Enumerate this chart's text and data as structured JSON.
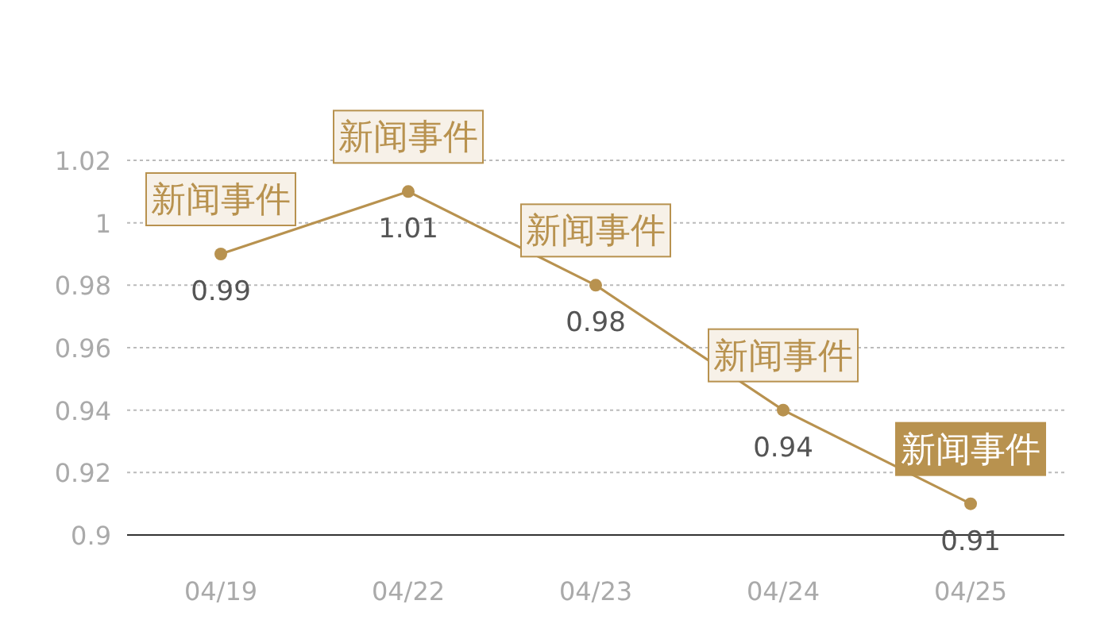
{
  "chart_data": {
    "type": "line",
    "categories": [
      "04/19",
      "04/22",
      "04/23",
      "04/24",
      "04/25"
    ],
    "series": [
      {
        "color": "#b8924f",
        "values": [
          0.99,
          1.01,
          0.98,
          0.94,
          0.91
        ]
      }
    ],
    "ylim": [
      0.9,
      1.02
    ],
    "yticks": [
      0.9,
      0.92,
      0.94,
      0.96,
      0.98,
      1,
      1.02
    ],
    "grid": "y",
    "marker": "circle",
    "line_style": "solid",
    "data_labels": true,
    "annotations": [
      {
        "text": "新闻事件",
        "x": "04/19",
        "y": 0.99
      },
      {
        "text": "新闻事件",
        "x": "04/22",
        "y": 1.01
      },
      {
        "text": "新闻事件",
        "x": "04/23",
        "y": 0.98
      },
      {
        "text": "新闻事件",
        "x": "04/24",
        "y": 0.94
      },
      {
        "text": "新闻事件",
        "x": "04/25",
        "y": 0.91
      }
    ]
  }
}
